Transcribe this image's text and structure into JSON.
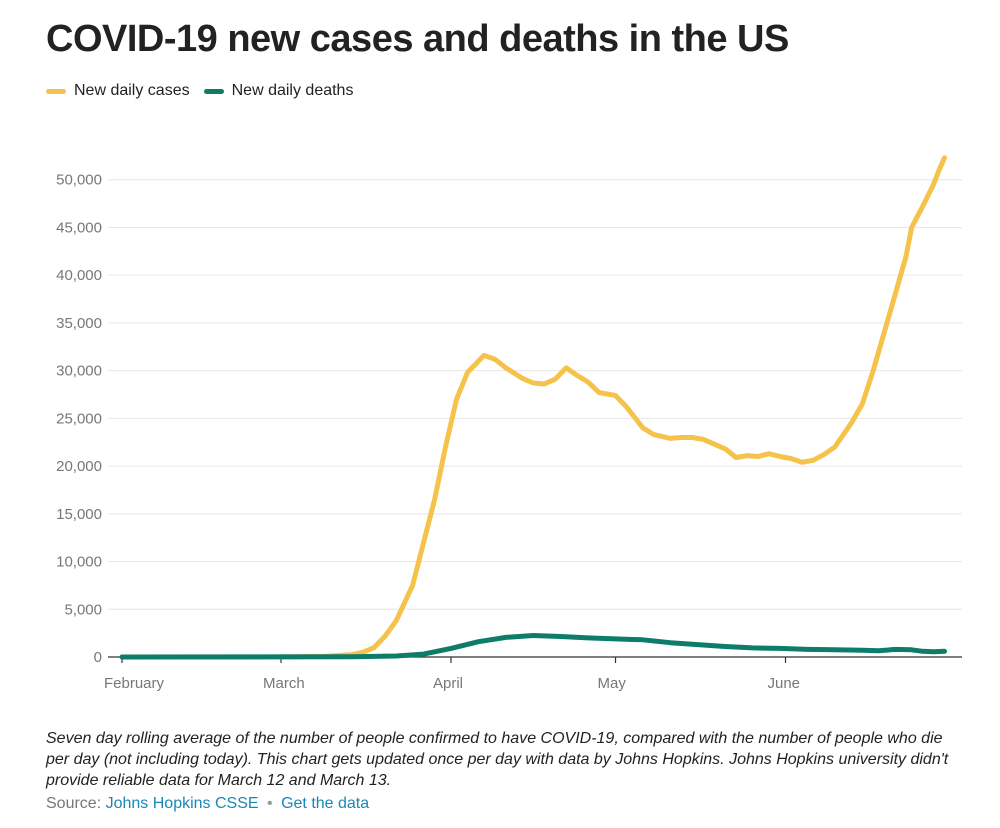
{
  "title": "COVID-19 new cases and deaths in the US",
  "legend": [
    {
      "label": "New daily cases",
      "color": "#f5c34b"
    },
    {
      "label": "New daily deaths",
      "color": "#0d7d6a"
    }
  ],
  "note": "Seven day rolling average of the number of people confirmed to have COVID-19, compared with the number of people who die per day (not including today). This chart gets updated once per day with data by Johns Hopkins. Johns Hopkins university didn't provide reliable data for March 12 and March 13.",
  "source": {
    "prefix": "Source:",
    "link1": "Johns Hopkins CSSE",
    "separator": "•",
    "link2": "Get the data"
  },
  "chart_data": {
    "type": "line",
    "title": "COVID-19 new cases and deaths in the US",
    "xlabel": "",
    "ylabel": "",
    "xlim": [
      0,
      151
    ],
    "ylim": [
      0,
      55000
    ],
    "grid": true,
    "legend_position": "top-left",
    "x_ticks": [
      {
        "label": "February",
        "day": 0
      },
      {
        "label": "March",
        "day": 29
      },
      {
        "label": "April",
        "day": 60
      },
      {
        "label": "May",
        "day": 90
      },
      {
        "label": "June",
        "day": 121
      }
    ],
    "y_ticks": [
      {
        "label": "0",
        "value": 0
      },
      {
        "label": "5,000",
        "value": 5000
      },
      {
        "label": "10,000",
        "value": 10000
      },
      {
        "label": "15,000",
        "value": 15000
      },
      {
        "label": "20,000",
        "value": 20000
      },
      {
        "label": "25,000",
        "value": 25000
      },
      {
        "label": "30,000",
        "value": 30000
      },
      {
        "label": "35,000",
        "value": 35000
      },
      {
        "label": "40,000",
        "value": 40000
      },
      {
        "label": "45,000",
        "value": 45000
      },
      {
        "label": "50,000",
        "value": 50000
      }
    ],
    "series": [
      {
        "name": "New daily cases",
        "color": "#f5c34b",
        "points": [
          [
            0,
            0
          ],
          [
            28,
            0
          ],
          [
            37,
            60
          ],
          [
            42,
            250
          ],
          [
            44,
            500
          ],
          [
            46,
            1000
          ],
          [
            48,
            2200
          ],
          [
            50,
            3800
          ],
          [
            53,
            7500
          ],
          [
            55,
            12000
          ],
          [
            57,
            16500
          ],
          [
            59,
            22000
          ],
          [
            61,
            27000
          ],
          [
            63,
            29800
          ],
          [
            66,
            31600
          ],
          [
            68,
            31200
          ],
          [
            70,
            30300
          ],
          [
            73,
            29200
          ],
          [
            75,
            28700
          ],
          [
            77,
            28600
          ],
          [
            79,
            29100
          ],
          [
            81,
            30300
          ],
          [
            83,
            29500
          ],
          [
            85,
            28800
          ],
          [
            87,
            27700
          ],
          [
            89,
            27500
          ],
          [
            90,
            27400
          ],
          [
            92,
            26200
          ],
          [
            95,
            24000
          ],
          [
            97,
            23300
          ],
          [
            100,
            22900
          ],
          [
            102,
            23000
          ],
          [
            104,
            23000
          ],
          [
            106,
            22800
          ],
          [
            108,
            22300
          ],
          [
            110,
            21800
          ],
          [
            112,
            20900
          ],
          [
            114,
            21100
          ],
          [
            116,
            21000
          ],
          [
            118,
            21300
          ],
          [
            120,
            21000
          ],
          [
            122,
            20800
          ],
          [
            124,
            20400
          ],
          [
            126,
            20600
          ],
          [
            128,
            21200
          ],
          [
            130,
            22000
          ],
          [
            133,
            24500
          ],
          [
            135,
            26500
          ],
          [
            137,
            30000
          ],
          [
            139,
            34000
          ],
          [
            141,
            38000
          ],
          [
            143,
            42000
          ],
          [
            144,
            45000
          ],
          [
            146,
            47200
          ],
          [
            148,
            49500
          ],
          [
            149,
            51000
          ],
          [
            150,
            52300
          ]
        ]
      },
      {
        "name": "New daily deaths",
        "color": "#0d7d6a",
        "points": [
          [
            0,
            0
          ],
          [
            42,
            20
          ],
          [
            50,
            100
          ],
          [
            55,
            300
          ],
          [
            60,
            900
          ],
          [
            65,
            1600
          ],
          [
            70,
            2050
          ],
          [
            75,
            2250
          ],
          [
            80,
            2150
          ],
          [
            85,
            2000
          ],
          [
            90,
            1900
          ],
          [
            95,
            1800
          ],
          [
            100,
            1500
          ],
          [
            105,
            1300
          ],
          [
            110,
            1100
          ],
          [
            115,
            950
          ],
          [
            120,
            900
          ],
          [
            125,
            800
          ],
          [
            130,
            750
          ],
          [
            135,
            700
          ],
          [
            138,
            650
          ],
          [
            141,
            800
          ],
          [
            144,
            750
          ],
          [
            146,
            600
          ],
          [
            148,
            550
          ],
          [
            150,
            600
          ]
        ]
      }
    ]
  }
}
